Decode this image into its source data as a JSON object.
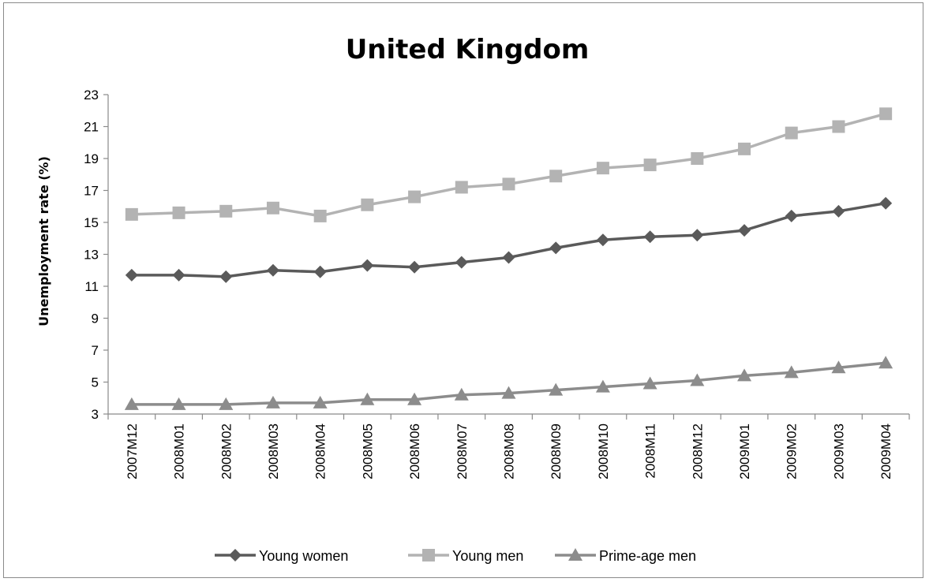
{
  "chart_data": {
    "type": "line",
    "title": "United Kingdom",
    "xlabel": "",
    "ylabel": "Unemployment rate (%)",
    "ylim": [
      3,
      23
    ],
    "yticks": [
      3,
      5,
      7,
      9,
      11,
      13,
      15,
      17,
      19,
      21,
      23
    ],
    "grid": false,
    "legend_position": "bottom",
    "categories": [
      "2007M12",
      "2008M01",
      "2008M02",
      "2008M03",
      "2008M04",
      "2008M05",
      "2008M06",
      "2008M07",
      "2008M08",
      "2008M09",
      "2008M10",
      "2008M11",
      "2008M12",
      "2009M01",
      "2009M02",
      "2009M03",
      "2009M04"
    ],
    "series": [
      {
        "name": "Young women",
        "marker": "diamond",
        "color": "#5a5a5a",
        "values": [
          11.7,
          11.7,
          11.6,
          12.0,
          11.9,
          12.3,
          12.2,
          12.5,
          12.8,
          13.4,
          13.9,
          14.1,
          14.2,
          14.5,
          15.4,
          15.7,
          16.2
        ]
      },
      {
        "name": "Young men",
        "marker": "square",
        "color": "#b3b3b3",
        "values": [
          15.5,
          15.6,
          15.7,
          15.9,
          15.4,
          16.1,
          16.6,
          17.2,
          17.4,
          17.9,
          18.4,
          18.6,
          19.0,
          19.6,
          20.6,
          21.0,
          21.8
        ]
      },
      {
        "name": "Prime-age men",
        "marker": "triangle",
        "color": "#8c8c8c",
        "values": [
          3.6,
          3.6,
          3.6,
          3.7,
          3.7,
          3.9,
          3.9,
          4.2,
          4.3,
          4.5,
          4.7,
          4.9,
          5.1,
          5.4,
          5.6,
          5.9,
          6.2
        ]
      }
    ]
  }
}
